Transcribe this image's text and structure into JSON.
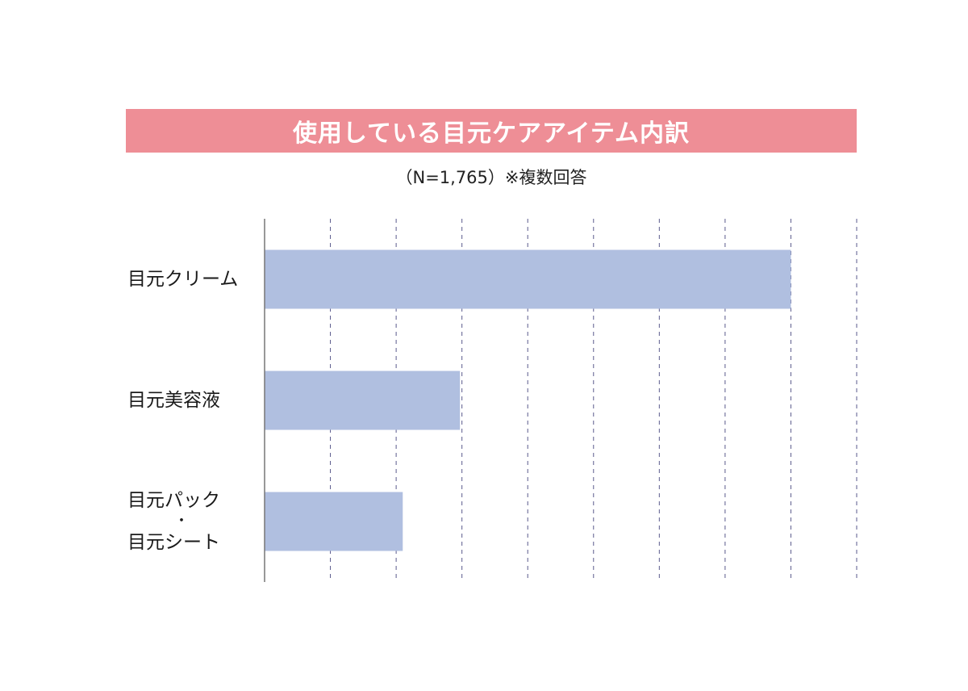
{
  "chart_data": {
    "type": "bar",
    "orientation": "horizontal",
    "title": "使用している目元ケアアイテム内訳",
    "subtitle": "（N=1,765）※複数回答",
    "categories": [
      "目元クリーム",
      "目元美容液",
      "目元パック・目元シート"
    ],
    "category_lines": [
      [
        "目元クリーム"
      ],
      [
        "目元美容液"
      ],
      [
        "目元パック",
        "・",
        "目元シート"
      ]
    ],
    "values": [
      80,
      29.7,
      21
    ],
    "xlim": [
      0,
      90
    ],
    "grid": true,
    "grid_step": 10,
    "bar_color": "#b0bfe0",
    "title_bg_color": "#ee8e96",
    "grid_color": "#5a5a8c",
    "axis_color": "#777777"
  }
}
